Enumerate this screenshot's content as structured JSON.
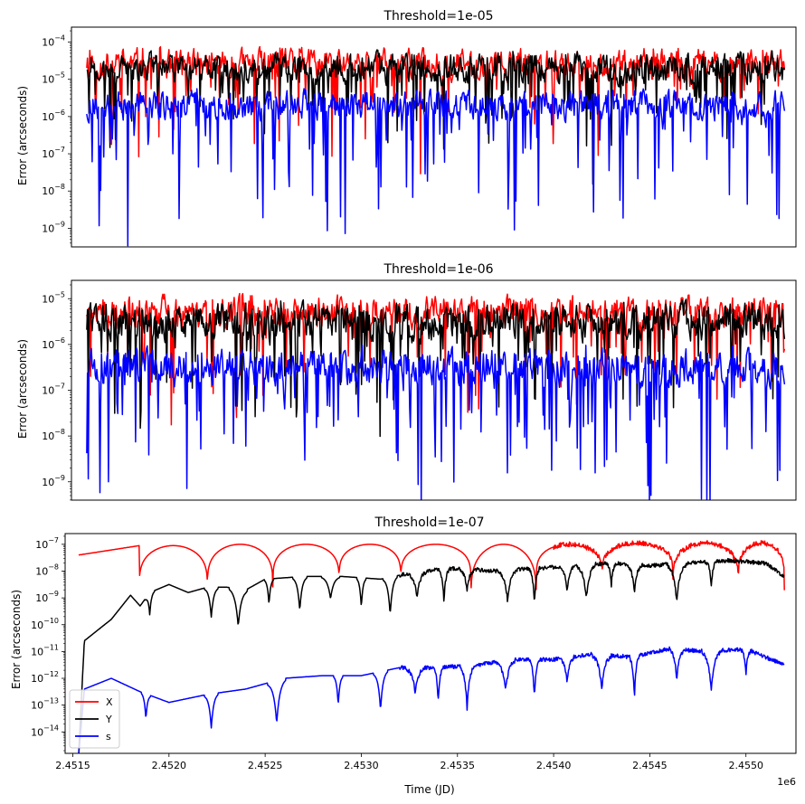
{
  "chart_data": [
    {
      "type": "line",
      "title": "Threshold=1e-05",
      "ylabel": "Error (arcseconds)",
      "xlabel": "",
      "yscale": "log",
      "ylim_exp": [
        -9.5,
        -3.6
      ],
      "ytick_exps": [
        -9,
        -8,
        -7,
        -6,
        -5,
        -4
      ],
      "xlim": [
        2451460,
        2455260
      ],
      "show_xticks": false,
      "series": [
        {
          "color": "#ff0000",
          "base_exp": -4.6,
          "noise": 0.35,
          "dips": 28,
          "dip_depth": 1.8
        },
        {
          "color": "#000000",
          "base_exp": -4.7,
          "noise": 0.35,
          "dips": 40,
          "dip_depth": 1.6
        },
        {
          "color": "#0000ff",
          "base_exp": -5.7,
          "noise": 0.35,
          "dips": 60,
          "dip_depth": 2.5
        }
      ]
    },
    {
      "type": "line",
      "title": "Threshold=1e-06",
      "ylabel": "Error (arcseconds)",
      "xlabel": "",
      "yscale": "log",
      "ylim_exp": [
        -9.4,
        -4.6
      ],
      "ytick_exps": [
        -9,
        -8,
        -7,
        -6,
        -5
      ],
      "xlim": [
        2451460,
        2455260
      ],
      "show_xticks": false,
      "series": [
        {
          "color": "#ff0000",
          "base_exp": -5.3,
          "noise": 0.3,
          "dips": 30,
          "dip_depth": 1.8
        },
        {
          "color": "#000000",
          "base_exp": -5.5,
          "noise": 0.35,
          "dips": 45,
          "dip_depth": 1.8
        },
        {
          "color": "#0000ff",
          "base_exp": -6.5,
          "noise": 0.35,
          "dips": 70,
          "dip_depth": 2.0
        }
      ]
    },
    {
      "type": "line",
      "title": "Threshold=1e-07",
      "ylabel": "Error (arcseconds)",
      "xlabel": "Time (JD)",
      "yscale": "log",
      "ylim_exp": [
        -14.8,
        -6.6
      ],
      "ytick_exps": [
        -14,
        -13,
        -12,
        -11,
        -10,
        -9,
        -8,
        -7
      ],
      "xlim": [
        2451460,
        2455260
      ],
      "show_xticks": true,
      "xticks": [
        2451500,
        2452000,
        2452500,
        2453000,
        2453500,
        2454000,
        2454500,
        2455000
      ],
      "xtick_labels": [
        "2.4515",
        "2.4520",
        "2.4525",
        "2.4530",
        "2.4535",
        "2.4540",
        "2.4545",
        "2.4550"
      ],
      "x_offset_label": "1e6",
      "legend": {
        "placement": "lower-left",
        "entries": [
          {
            "label": "X",
            "color": "#ff0000"
          },
          {
            "label": "Y",
            "color": "#000000"
          },
          {
            "label": "s",
            "color": "#0000ff"
          }
        ]
      },
      "series": [
        {
          "name": "X",
          "color": "#ff0000",
          "x_start": 2451530,
          "x_end": 2455200,
          "dips_x": [
            2451845,
            2452200,
            2452540,
            2452885,
            2453205,
            2453570,
            2453910,
            2454255,
            2454620,
            2454960
          ],
          "peaks_exp": [
            -7.05,
            -7.05,
            -7.0,
            -7.0,
            -7.0,
            -7.0,
            -7.0,
            -7.0,
            -6.95,
            -6.95
          ],
          "trough_exp": [
            -10.0,
            -9.0,
            -8.9,
            -8.7,
            -8.5,
            -8.6,
            -9.5,
            -8.5,
            -8.3,
            -8.7
          ]
        },
        {
          "name": "Y",
          "color": "#000000",
          "x_start": 2451530,
          "x_end": 2455200,
          "points_exp": [
            [
              2451530,
              -14.9
            ],
            [
              2451560,
              -10.6
            ],
            [
              2451700,
              -9.8
            ],
            [
              2451800,
              -8.9
            ],
            [
              2451850,
              -9.3
            ],
            [
              2451900,
              -8.8
            ],
            [
              2452000,
              -8.5
            ],
            [
              2452100,
              -8.8
            ],
            [
              2452200,
              -8.6
            ],
            [
              2452300,
              -8.6
            ],
            [
              2452400,
              -8.7
            ],
            [
              2452500,
              -8.3
            ],
            [
              2452700,
              -8.2
            ],
            [
              2452900,
              -8.2
            ],
            [
              2453100,
              -8.3
            ],
            [
              2453300,
              -8.0
            ],
            [
              2453500,
              -7.9
            ],
            [
              2453700,
              -8.0
            ],
            [
              2453900,
              -7.9
            ],
            [
              2454100,
              -7.8
            ],
            [
              2454300,
              -7.7
            ],
            [
              2454500,
              -7.8
            ],
            [
              2454700,
              -7.7
            ],
            [
              2454900,
              -7.6
            ],
            [
              2455100,
              -7.7
            ],
            [
              2455200,
              -8.2
            ]
          ],
          "dips_x": [
            2451900,
            2452220,
            2452360,
            2452520,
            2452680,
            2452840,
            2453000,
            2453150,
            2453290,
            2453430,
            2453550,
            2453760,
            2453900,
            2454070,
            2454170,
            2454300,
            2454420,
            2454640,
            2454820
          ],
          "dip_depth": 1.4
        },
        {
          "name": "s",
          "color": "#0000ff",
          "x_start": 2451530,
          "x_end": 2455200,
          "points_exp": [
            [
              2451530,
              -14.9
            ],
            [
              2451560,
              -12.4
            ],
            [
              2451700,
              -12.0
            ],
            [
              2451850,
              -12.5
            ],
            [
              2452000,
              -12.9
            ],
            [
              2452200,
              -12.6
            ],
            [
              2452400,
              -12.4
            ],
            [
              2452600,
              -12.0
            ],
            [
              2452800,
              -11.9
            ],
            [
              2453000,
              -11.9
            ],
            [
              2453200,
              -11.6
            ],
            [
              2453400,
              -11.6
            ],
            [
              2453600,
              -11.5
            ],
            [
              2453800,
              -11.3
            ],
            [
              2454000,
              -11.3
            ],
            [
              2454200,
              -11.1
            ],
            [
              2454400,
              -11.2
            ],
            [
              2454600,
              -10.9
            ],
            [
              2454800,
              -11.0
            ],
            [
              2455000,
              -10.9
            ],
            [
              2455200,
              -11.5
            ]
          ],
          "dips_x": [
            2451880,
            2452220,
            2452560,
            2452880,
            2453100,
            2453280,
            2453400,
            2453550,
            2453750,
            2453900,
            2454070,
            2454250,
            2454420,
            2454640,
            2454820,
            2455000
          ],
          "dip_depth": 1.6
        }
      ]
    }
  ]
}
